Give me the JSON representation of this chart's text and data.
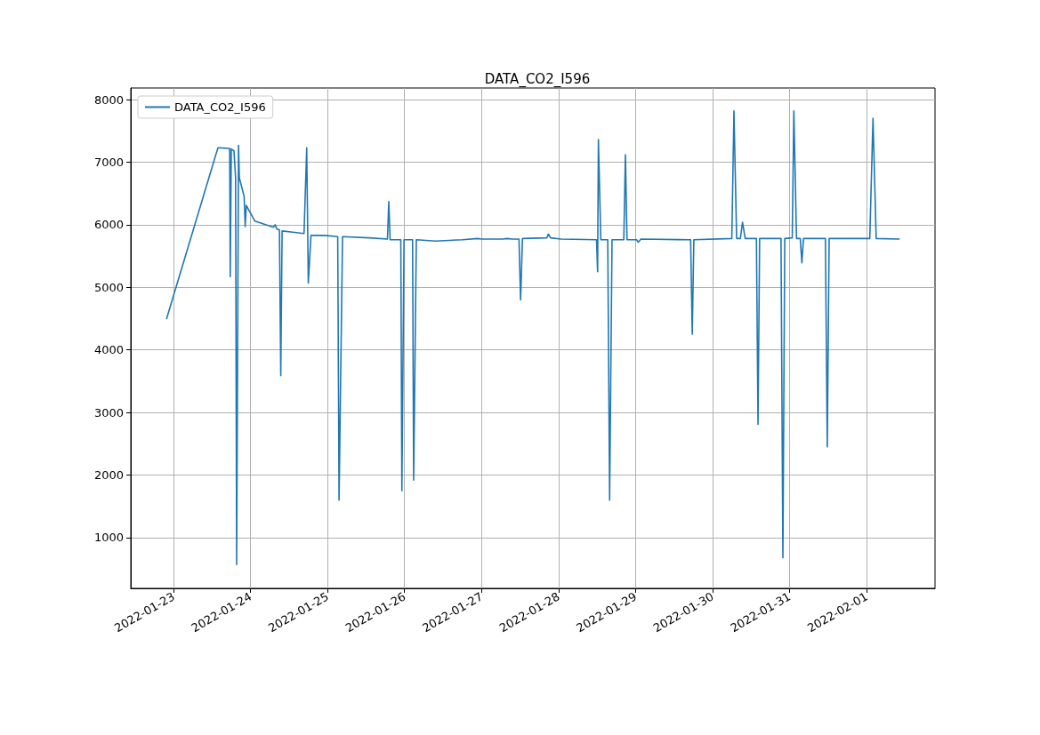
{
  "chart_data": {
    "type": "line",
    "title": "DATA_CO2_I596",
    "x": [
      "2022-01-22T21:50",
      "2022-01-23T13:50",
      "2022-01-23T17:30",
      "2022-01-23T17:40",
      "2022-01-23T18:00",
      "2022-01-23T18:50",
      "2022-01-23T19:20",
      "2022-01-23T19:40",
      "2022-01-23T20:15",
      "2022-01-23T20:30",
      "2022-01-23T22:00",
      "2022-01-23T22:20",
      "2022-01-23T22:40",
      "2022-01-24T01:20",
      "2022-01-24T07:10",
      "2022-01-24T07:40",
      "2022-01-24T08:10",
      "2022-01-24T09:00",
      "2022-01-24T09:25",
      "2022-01-24T09:50",
      "2022-01-24T13:10",
      "2022-01-24T16:40",
      "2022-01-24T17:30",
      "2022-01-24T18:00",
      "2022-01-24T18:50",
      "2022-01-24T23:00",
      "2022-01-25T03:10",
      "2022-01-25T03:35",
      "2022-01-25T04:40",
      "2022-01-25T13:00",
      "2022-01-25T18:40",
      "2022-01-25T19:05",
      "2022-01-25T19:30",
      "2022-01-25T22:50",
      "2022-01-25T23:10",
      "2022-01-25T23:50",
      "2022-01-26T02:30",
      "2022-01-26T02:50",
      "2022-01-26T03:40",
      "2022-01-26T09:40",
      "2022-01-26T18:00",
      "2022-01-26T22:45",
      "2022-01-27T00:00",
      "2022-01-27T06:30",
      "2022-01-27T08:00",
      "2022-01-27T09:30",
      "2022-01-27T11:40",
      "2022-01-27T12:10",
      "2022-01-27T12:45",
      "2022-01-27T20:20",
      "2022-01-27T20:50",
      "2022-01-27T21:30",
      "2022-01-28T00:50",
      "2022-01-28T11:50",
      "2022-01-28T12:10",
      "2022-01-28T12:25",
      "2022-01-28T13:10",
      "2022-01-28T15:20",
      "2022-01-28T15:55",
      "2022-01-28T16:40",
      "2022-01-28T20:20",
      "2022-01-28T20:50",
      "2022-01-28T21:20",
      "2022-01-29T00:20",
      "2022-01-29T00:50",
      "2022-01-29T01:40",
      "2022-01-29T17:10",
      "2022-01-29T17:40",
      "2022-01-29T18:10",
      "2022-01-30T06:00",
      "2022-01-30T06:40",
      "2022-01-30T07:30",
      "2022-01-30T08:40",
      "2022-01-30T09:20",
      "2022-01-30T10:10",
      "2022-01-30T13:40",
      "2022-01-30T14:10",
      "2022-01-30T14:40",
      "2022-01-30T21:20",
      "2022-01-30T21:55",
      "2022-01-30T22:30",
      "2022-01-31T00:50",
      "2022-01-31T01:20",
      "2022-01-31T02:10",
      "2022-01-31T03:20",
      "2022-01-31T03:50",
      "2022-01-31T04:20",
      "2022-01-31T11:10",
      "2022-01-31T11:45",
      "2022-01-31T12:20",
      "2022-02-01T01:00",
      "2022-02-01T02:00",
      "2022-02-01T03:00",
      "2022-02-01T10:10"
    ],
    "series": [
      {
        "name": "DATA_CO2_I596",
        "color": "#1f77b4",
        "values": [
          4500,
          7230,
          7220,
          5170,
          7210,
          7180,
          6750,
          570,
          7270,
          6750,
          6450,
          5970,
          6310,
          6060,
          5960,
          6000,
          5930,
          5920,
          3590,
          5900,
          5880,
          5860,
          7230,
          5070,
          5830,
          5830,
          5810,
          1600,
          5810,
          5790,
          5770,
          6370,
          5760,
          5760,
          1750,
          5760,
          5760,
          1920,
          5760,
          5740,
          5760,
          5780,
          5770,
          5770,
          5780,
          5770,
          5770,
          4800,
          5780,
          5790,
          5850,
          5790,
          5770,
          5760,
          5250,
          7360,
          5760,
          5760,
          1600,
          5760,
          5760,
          7120,
          5760,
          5760,
          5720,
          5770,
          5760,
          4250,
          5760,
          5780,
          7820,
          5780,
          5780,
          6040,
          5780,
          5780,
          2810,
          5780,
          5780,
          680,
          5780,
          5790,
          7820,
          5780,
          5780,
          5390,
          5780,
          5780,
          2450,
          5780,
          5780,
          7700,
          5780,
          5770
        ]
      }
    ],
    "xlim": [
      "2022-01-22T10:40",
      "2022-02-01T21:20"
    ],
    "ylim": [
      190,
      8185
    ],
    "xticks": [
      "2022-01-23",
      "2022-01-24",
      "2022-01-25",
      "2022-01-26",
      "2022-01-27",
      "2022-01-28",
      "2022-01-29",
      "2022-01-30",
      "2022-01-31",
      "2022-02-01"
    ],
    "yticks": [
      1000,
      2000,
      3000,
      4000,
      5000,
      6000,
      7000,
      8000
    ],
    "grid": true,
    "legend": "top left",
    "line_style": "solid"
  }
}
